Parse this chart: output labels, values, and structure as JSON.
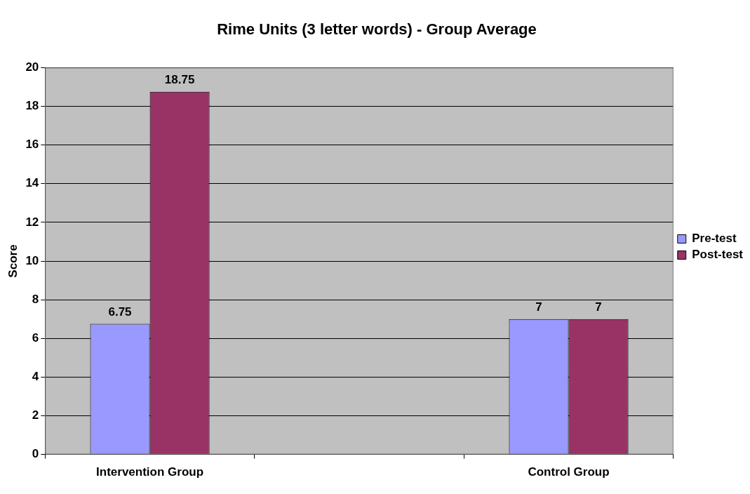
{
  "chart_data": {
    "type": "bar",
    "title": "Rime Units (3 letter words) - Group Average",
    "ylabel": "Score",
    "categories": [
      "Intervention Group",
      null,
      "Control Group"
    ],
    "series": [
      {
        "name": "Pre-test",
        "color": "#9999ff",
        "values": [
          6.75,
          null,
          7
        ]
      },
      {
        "name": "Post-test",
        "color": "#993366",
        "values": [
          18.75,
          null,
          7
        ]
      }
    ],
    "ylim": [
      0,
      20
    ],
    "yticks": [
      0,
      2,
      4,
      6,
      8,
      10,
      12,
      14,
      16,
      18,
      20
    ],
    "grid": "y",
    "legend": "right",
    "data_labels": true
  }
}
